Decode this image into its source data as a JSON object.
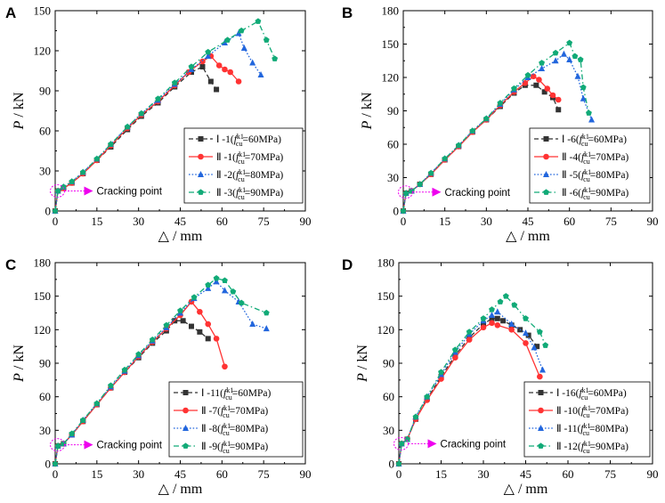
{
  "chart_data": [
    {
      "type": "line",
      "panel_label": "A",
      "xlabel": "△ / mm",
      "ylabel_main": "P",
      "ylabel_unit": " / kN",
      "xlim": [
        0,
        90
      ],
      "ylim": [
        0,
        150
      ],
      "xticks": [
        0,
        15,
        30,
        45,
        60,
        75,
        90
      ],
      "yticks": [
        0,
        30,
        60,
        90,
        120,
        150
      ],
      "annotation": "Cracking point",
      "crack_point": [
        0.8,
        15
      ],
      "series": [
        {
          "name": "Ⅰ-1",
          "label_prefix": "Ⅰ -1(",
          "label_suffix": "=60MPa)",
          "style": "dash",
          "color": "#333333",
          "marker": "square",
          "x": [
            0,
            1,
            3,
            6,
            10,
            15,
            20,
            26,
            31,
            37,
            43,
            49,
            53,
            56,
            58
          ],
          "y": [
            0,
            15,
            17,
            21,
            28,
            38,
            48,
            61,
            71,
            81,
            93,
            104,
            108,
            97,
            91
          ]
        },
        {
          "name": "Ⅱ-1",
          "label_prefix": "Ⅱ -1(",
          "label_suffix": "=70MPa)",
          "style": "solid",
          "color": "#ff3333",
          "marker": "circle",
          "x": [
            0,
            1,
            3,
            6,
            10,
            15,
            20,
            26,
            31,
            37,
            43,
            48,
            53,
            56,
            59,
            61,
            63,
            66
          ],
          "y": [
            0,
            15,
            17,
            21,
            28,
            38,
            49,
            62,
            72,
            82,
            94,
            104,
            112,
            116,
            109,
            106,
            104,
            97
          ]
        },
        {
          "name": "Ⅱ-2",
          "label_prefix": "Ⅱ -2(",
          "label_suffix": "=80MPa)",
          "style": "dot",
          "color": "#2266dd",
          "marker": "triangle",
          "x": [
            0,
            1,
            3,
            6,
            10,
            15,
            20,
            26,
            31,
            37,
            43,
            49,
            55,
            61,
            66,
            68,
            71,
            74
          ],
          "y": [
            0,
            15,
            18,
            22,
            29,
            39,
            50,
            63,
            73,
            83,
            95,
            106,
            116,
            126,
            133,
            122,
            111,
            102
          ]
        },
        {
          "name": "Ⅱ-3",
          "label_prefix": "Ⅱ -3(",
          "label_suffix": "=90MPa)",
          "style": "dashdot",
          "color": "#11aa77",
          "marker": "pentagon",
          "x": [
            0,
            1,
            3,
            6,
            10,
            15,
            20,
            26,
            31,
            37,
            43,
            49,
            55,
            62,
            67,
            73,
            76,
            79
          ],
          "y": [
            0,
            15,
            18,
            22,
            29,
            39,
            50,
            63,
            73,
            84,
            96,
            108,
            119,
            128,
            135,
            142,
            128,
            114
          ]
        }
      ]
    },
    {
      "type": "line",
      "panel_label": "B",
      "xlabel": "△ / mm",
      "ylabel_main": "P",
      "ylabel_unit": " / kN",
      "xlim": [
        0,
        90
      ],
      "ylim": [
        0,
        180
      ],
      "xticks": [
        0,
        15,
        30,
        45,
        60,
        75,
        90
      ],
      "yticks": [
        0,
        30,
        60,
        90,
        120,
        150,
        180
      ],
      "annotation": "Cracking point",
      "crack_point": [
        0.8,
        17
      ],
      "series": [
        {
          "name": "Ⅰ-6",
          "label_prefix": "Ⅰ -6(",
          "label_suffix": "=60MPa)",
          "style": "dash",
          "color": "#333333",
          "marker": "square",
          "x": [
            0,
            1,
            3,
            6,
            10,
            15,
            20,
            25,
            30,
            35,
            40,
            44,
            48,
            51,
            54,
            56
          ],
          "y": [
            0,
            16,
            18,
            24,
            33,
            46,
            58,
            71,
            82,
            94,
            106,
            113,
            113,
            107,
            102,
            91
          ]
        },
        {
          "name": "Ⅱ-4",
          "label_prefix": "Ⅱ -4(",
          "label_suffix": "=70MPa)",
          "style": "solid",
          "color": "#ff3333",
          "marker": "circle",
          "x": [
            0,
            1,
            3,
            6,
            10,
            15,
            20,
            25,
            30,
            35,
            40,
            44,
            47,
            49,
            52,
            54,
            56
          ],
          "y": [
            0,
            16,
            18,
            24,
            33,
            46,
            58,
            71,
            82,
            95,
            107,
            115,
            121,
            118,
            110,
            104,
            100
          ]
        },
        {
          "name": "Ⅱ-5",
          "label_prefix": "Ⅱ -5(",
          "label_suffix": "=80MPa)",
          "style": "dot",
          "color": "#2266dd",
          "marker": "triangle",
          "x": [
            0,
            1,
            3,
            6,
            10,
            15,
            20,
            25,
            30,
            35,
            40,
            45,
            50,
            55,
            58,
            60,
            63,
            65,
            68
          ],
          "y": [
            0,
            16,
            18,
            24,
            34,
            47,
            59,
            72,
            83,
            96,
            109,
            120,
            128,
            135,
            141,
            136,
            121,
            101,
            82
          ]
        },
        {
          "name": "Ⅱ-6",
          "label_prefix": "Ⅱ -6(",
          "label_suffix": "=90MPa)",
          "style": "dashdot",
          "color": "#11aa77",
          "marker": "pentagon",
          "x": [
            0,
            1,
            3,
            6,
            10,
            15,
            20,
            25,
            30,
            35,
            40,
            45,
            50,
            55,
            60,
            62,
            64,
            65,
            67
          ],
          "y": [
            0,
            16,
            18,
            24,
            34,
            47,
            59,
            72,
            83,
            97,
            110,
            122,
            133,
            142,
            151,
            139,
            136,
            111,
            88
          ]
        }
      ]
    },
    {
      "type": "line",
      "panel_label": "C",
      "xlabel": "△ / mm",
      "ylabel_main": "P",
      "ylabel_unit": " / kN",
      "xlim": [
        0,
        90
      ],
      "ylim": [
        0,
        180
      ],
      "xticks": [
        0,
        15,
        30,
        45,
        60,
        75,
        90
      ],
      "yticks": [
        0,
        30,
        60,
        90,
        120,
        150,
        180
      ],
      "annotation": "Cracking point",
      "crack_point": [
        0.8,
        17
      ],
      "series": [
        {
          "name": "Ⅰ-11",
          "label_prefix": "Ⅰ -11(",
          "label_suffix": "=60MPa)",
          "style": "dash",
          "color": "#333333",
          "marker": "square",
          "x": [
            0,
            1,
            3,
            6,
            10,
            15,
            20,
            25,
            30,
            35,
            40,
            43,
            46,
            49,
            52,
            55
          ],
          "y": [
            0,
            16,
            18,
            26,
            38,
            53,
            68,
            82,
            95,
            108,
            119,
            128,
            128,
            123,
            118,
            112
          ]
        },
        {
          "name": "Ⅱ-7",
          "label_prefix": "Ⅱ -7(",
          "label_suffix": "=70MPa)",
          "style": "solid",
          "color": "#ff3333",
          "marker": "circle",
          "x": [
            0,
            1,
            3,
            6,
            10,
            15,
            20,
            25,
            30,
            35,
            40,
            45,
            49,
            52,
            55,
            58,
            61
          ],
          "y": [
            0,
            16,
            18,
            26,
            38,
            53,
            68,
            82,
            96,
            109,
            121,
            133,
            145,
            136,
            125,
            112,
            87
          ]
        },
        {
          "name": "Ⅱ-8",
          "label_prefix": "Ⅱ -8(",
          "label_suffix": "=80MPa)",
          "style": "dot",
          "color": "#2266dd",
          "marker": "triangle",
          "x": [
            0,
            1,
            3,
            6,
            10,
            15,
            20,
            25,
            30,
            35,
            40,
            45,
            50,
            55,
            58,
            61,
            66,
            71,
            76
          ],
          "y": [
            0,
            16,
            18,
            26,
            39,
            54,
            69,
            83,
            97,
            110,
            122,
            135,
            148,
            157,
            163,
            155,
            145,
            125,
            121
          ]
        },
        {
          "name": "Ⅱ-9",
          "label_prefix": "Ⅱ -9(",
          "label_suffix": "=90MPa)",
          "style": "dashdot",
          "color": "#11aa77",
          "marker": "pentagon",
          "x": [
            0,
            1,
            3,
            6,
            10,
            15,
            20,
            25,
            30,
            35,
            40,
            45,
            50,
            55,
            58,
            61,
            64,
            67,
            76
          ],
          "y": [
            0,
            16,
            18,
            27,
            39,
            54,
            70,
            84,
            98,
            111,
            124,
            137,
            149,
            160,
            166,
            164,
            154,
            144,
            135
          ]
        }
      ]
    },
    {
      "type": "line",
      "panel_label": "D",
      "xlabel": "△ / mm",
      "ylabel_main": "P",
      "ylabel_unit": " / kN",
      "xlim": [
        0,
        90
      ],
      "ylim": [
        0,
        180
      ],
      "xticks": [
        0,
        15,
        30,
        45,
        60,
        75,
        90
      ],
      "yticks": [
        0,
        30,
        60,
        90,
        120,
        150,
        180
      ],
      "annotation": "Cracking point",
      "crack_point": [
        0.8,
        18
      ],
      "series": [
        {
          "name": "Ⅰ-16",
          "label_prefix": "Ⅰ -16(",
          "label_suffix": "=60MPa)",
          "style": "dash",
          "color": "#333333",
          "marker": "square",
          "x": [
            0,
            1,
            3,
            6,
            10,
            15,
            20,
            25,
            30,
            33,
            35,
            37,
            40,
            43,
            46,
            49
          ],
          "y": [
            0,
            18,
            22,
            40,
            58,
            78,
            97,
            113,
            125,
            130,
            130,
            128,
            124,
            120,
            115,
            105
          ]
        },
        {
          "name": "Ⅱ-10",
          "label_prefix": "Ⅱ -10(",
          "label_suffix": "=70MPa)",
          "style": "solid",
          "color": "#ff3333",
          "marker": "circle",
          "x": [
            0,
            1,
            3,
            6,
            10,
            15,
            20,
            25,
            30,
            33,
            35,
            40,
            45,
            50
          ],
          "y": [
            0,
            18,
            22,
            40,
            57,
            76,
            95,
            111,
            122,
            126,
            124,
            120,
            108,
            78
          ]
        },
        {
          "name": "Ⅱ-11",
          "label_prefix": "Ⅱ -11(",
          "label_suffix": "=80MPa)",
          "style": "dot",
          "color": "#2266dd",
          "marker": "triangle",
          "x": [
            0,
            1,
            3,
            6,
            10,
            15,
            20,
            25,
            30,
            33,
            35,
            40,
            45,
            48,
            51
          ],
          "y": [
            0,
            18,
            22,
            42,
            60,
            80,
            100,
            116,
            128,
            133,
            136,
            125,
            117,
            104,
            84
          ]
        },
        {
          "name": "Ⅱ-12",
          "label_prefix": "Ⅱ -12(",
          "label_suffix": "=90MPa)",
          "style": "dashdot",
          "color": "#11aa77",
          "marker": "pentagon",
          "x": [
            0,
            1,
            3,
            6,
            10,
            15,
            20,
            25,
            30,
            33,
            36,
            38,
            41,
            45,
            50,
            52
          ],
          "y": [
            0,
            18,
            22,
            42,
            60,
            82,
            102,
            118,
            130,
            138,
            145,
            150,
            142,
            130,
            118,
            106
          ]
        }
      ]
    }
  ]
}
